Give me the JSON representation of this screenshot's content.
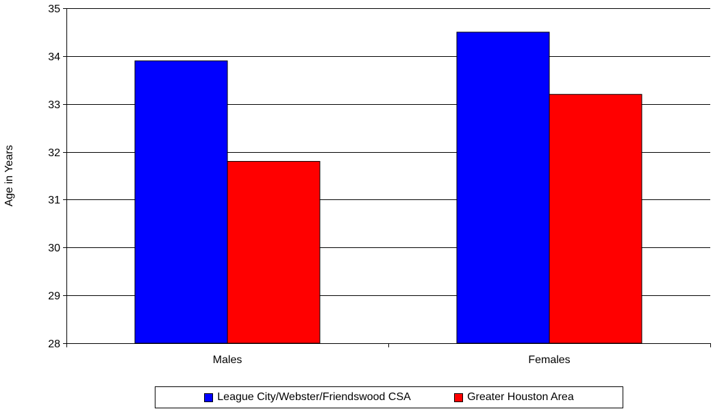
{
  "chart_data": {
    "type": "bar",
    "categories": [
      "Males",
      "Females"
    ],
    "series": [
      {
        "name": "League City/Webster/Friendswood CSA",
        "color": "#0000ff",
        "values": [
          33.9,
          34.5
        ]
      },
      {
        "name": "Greater Houston Area",
        "color": "#ff0000",
        "values": [
          31.8,
          33.2
        ]
      }
    ],
    "title": "",
    "xlabel": "",
    "ylabel": "Age in Years",
    "ylim": [
      28,
      35
    ],
    "yticks": [
      28,
      29,
      30,
      31,
      32,
      33,
      34,
      35
    ],
    "grid": true,
    "legend": "bottom"
  }
}
